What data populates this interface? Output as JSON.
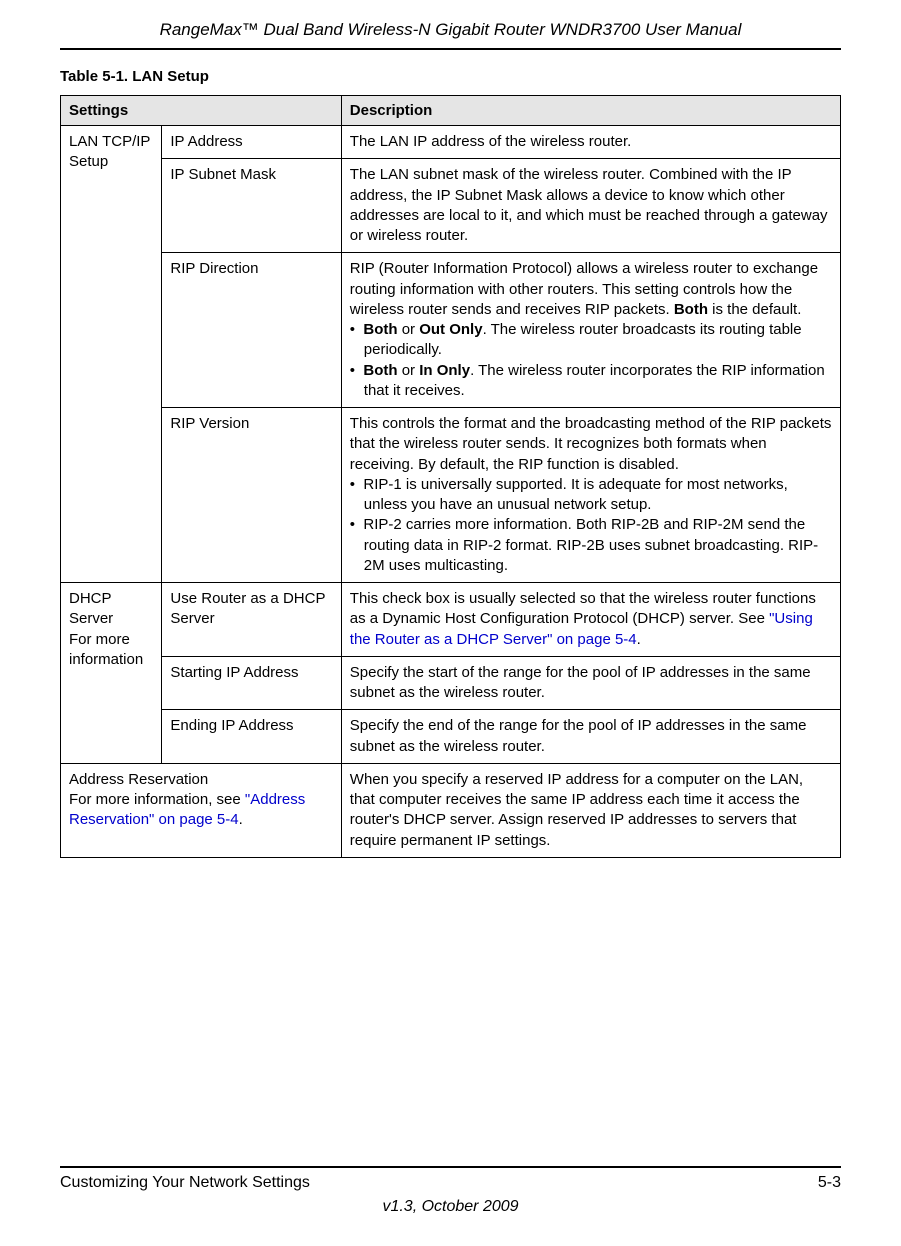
{
  "header": {
    "title": "RangeMax™ Dual Band Wireless-N Gigabit Router WNDR3700 User Manual"
  },
  "table": {
    "caption": "Table 5-1.   LAN Setup",
    "header_settings": "Settings",
    "header_description": "Description",
    "rows": {
      "lan_tcpip_label": "LAN TCP/IP Setup",
      "ip_address_label": "IP Address",
      "ip_address_desc": "The LAN IP address of the wireless router.",
      "ip_subnet_label": "IP Subnet Mask",
      "ip_subnet_desc": "The LAN subnet mask of the wireless router. Combined with the IP address, the IP Subnet Mask allows a device to know which other addresses are local to it, and which must be reached through a gateway or wireless router.",
      "rip_direction_label": "RIP Direction",
      "rip_direction_intro": " RIP (Router Information Protocol) allows a wireless router to exchange routing information with other routers. This setting controls how the wireless router sends and receives RIP packets. ",
      "rip_direction_bold_default": "Both",
      "rip_direction_default_suffix": " is the default.",
      "rip_bullet1_bold1": "Both",
      "rip_bullet1_or": " or ",
      "rip_bullet1_bold2": "Out Only",
      "rip_bullet1_rest": ". The wireless router broadcasts its routing table periodically.",
      "rip_bullet2_bold1": "Both",
      "rip_bullet2_or": " or ",
      "rip_bullet2_bold2": "In Only",
      "rip_bullet2_rest": ". The wireless router incorporates the RIP information that it receives.",
      "rip_version_label": "RIP Version",
      "rip_version_intro": "This controls the format and the broadcasting method of the RIP packets that the wireless router sends. It recognizes both formats when receiving. By default, the RIP function is disabled.",
      "rip_version_bullet1": "RIP-1 is universally supported. It is adequate for most networks, unless you have an unusual network setup.",
      "rip_version_bullet2": "RIP-2 carries more information. Both RIP-2B and RIP-2M send the routing data in RIP-2 format. RIP-2B uses subnet broadcasting. RIP-2M uses multicasting.",
      "dhcp_label_line1": "DHCP Server",
      "dhcp_label_line2": "For more information",
      "dhcp_use_router_label": "Use Router as a DHCP Server",
      "dhcp_use_router_desc_pre": "This check box is usually selected so that the wireless router functions as a Dynamic Host Configuration Protocol (DHCP) server. See ",
      "dhcp_use_router_link": "\"Using the Router as a DHCP Server\" on page 5-4",
      "dhcp_use_router_desc_post": ".",
      "starting_ip_label": "Starting IP Address",
      "starting_ip_desc": "Specify the start of the range for the pool of IP addresses in the same subnet as the wireless router.",
      "ending_ip_label": "Ending IP Address",
      "ending_ip_desc": "Specify the end of the range for the pool of IP addresses in the same subnet as the wireless router.",
      "addr_res_line1": "Address Reservation",
      "addr_res_line2_pre": "For more information, see ",
      "addr_res_link": "\"Address Reservation\" on page 5-4",
      "addr_res_line2_post": ".",
      "addr_res_desc": "When you specify a reserved IP address for a computer on the LAN, that computer receives the same IP address each time it access the router's DHCP server. Assign reserved IP addresses to servers that require permanent IP settings."
    }
  },
  "footer": {
    "left": "Customizing Your Network Settings",
    "right": "5-3",
    "version": "v1.3, October 2009"
  }
}
